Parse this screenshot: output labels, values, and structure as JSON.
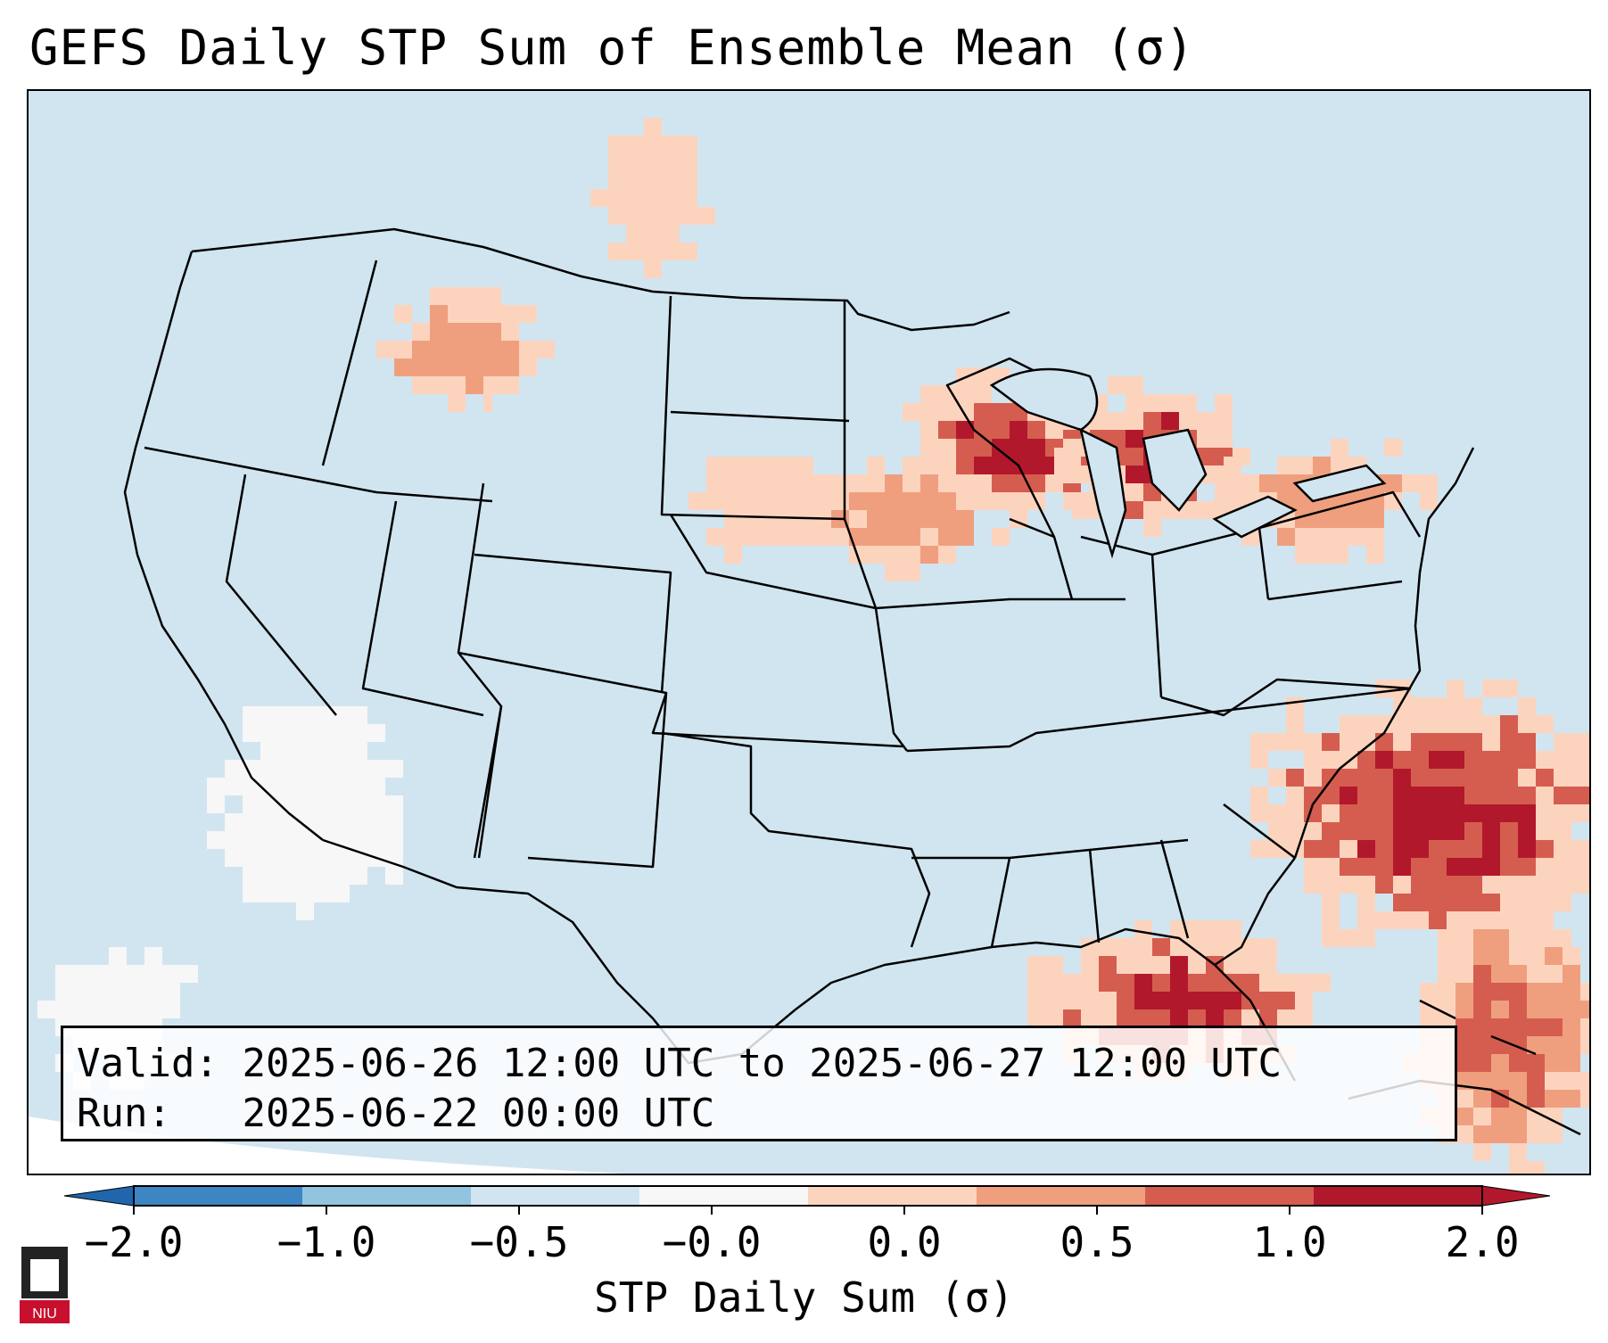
{
  "title": "GEFS Daily STP Sum of Ensemble Mean (σ)",
  "info": {
    "valid_label": "Valid:",
    "valid_value": "2025-06-26 12:00 UTC to 2025-06-27 12:00 UTC",
    "run_label": "Run:",
    "run_value": "2025-06-22 00:00 UTC"
  },
  "colorbar": {
    "label": "STP Daily Sum (σ)",
    "ticks": [
      "−2.0",
      "−1.0",
      "−0.5",
      "−0.0",
      "0.0",
      "0.5",
      "1.0",
      "2.0"
    ],
    "colors": [
      "#3d85c3",
      "#92c3df",
      "#d1e5f0",
      "#f7f7f7",
      "#fcd4be",
      "#ef9f7e",
      "#d55d4f",
      "#b2182b"
    ]
  },
  "map_colors": {
    "land": "#d1e5f0",
    "boundary": "#000000"
  },
  "logo": {
    "text": "NIU"
  }
}
